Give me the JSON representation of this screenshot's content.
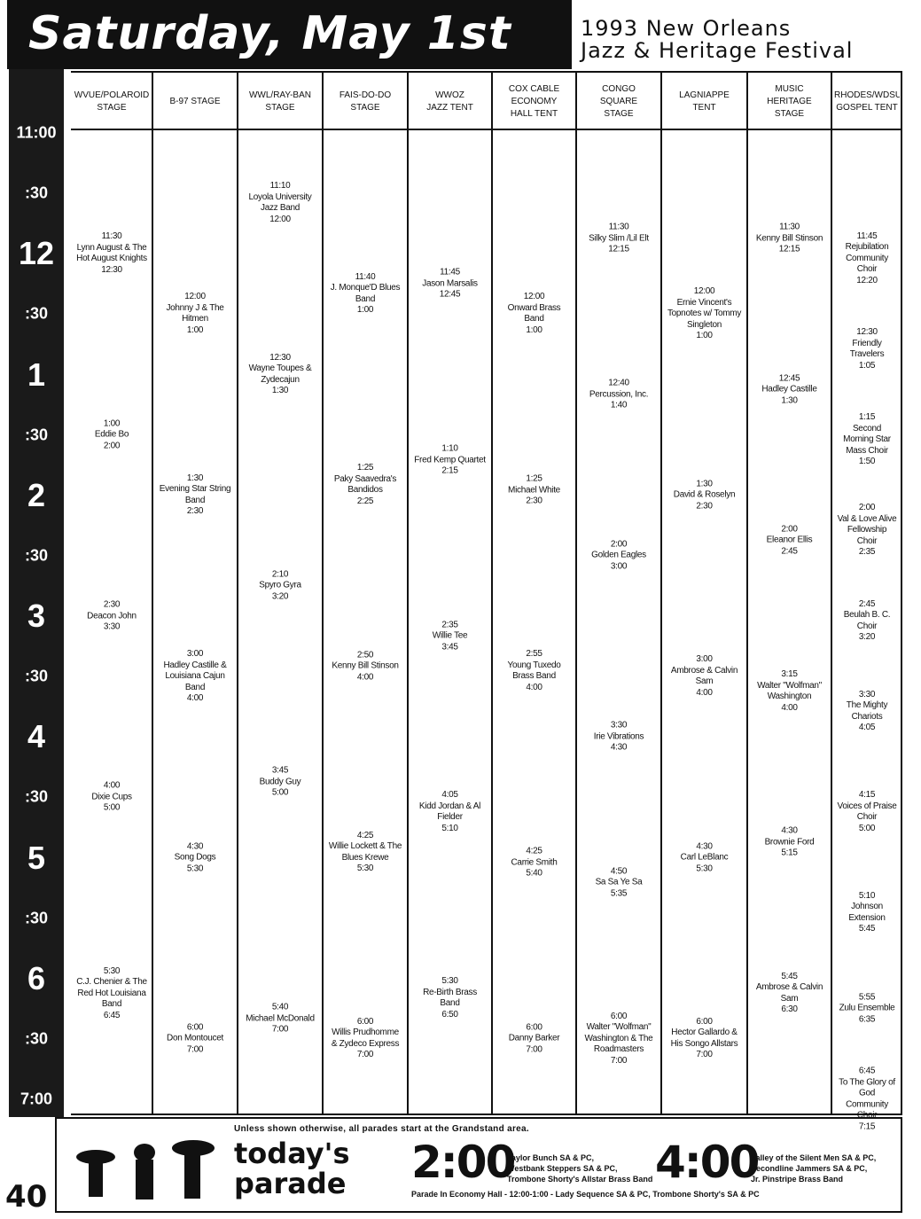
{
  "header": {
    "title": "Saturday, May 1st",
    "subtitle": [
      "1993 New Orleans",
      "Jazz & Heritage Festival"
    ]
  },
  "times": [
    "11:00",
    ":30",
    "12",
    ":30",
    "1",
    ":30",
    "2",
    ":30",
    "3",
    ":30",
    "4",
    ":30",
    "5",
    ":30",
    "6",
    ":30",
    "7:00"
  ],
  "stages": [
    {
      "name": [
        "WVUE/POLAROID",
        "STAGE"
      ],
      "events": [
        {
          "start": "11:30",
          "name": "Lynn August & The Hot August Knights",
          "end": "12:30"
        },
        {
          "start": "1:00",
          "name": "Eddie Bo",
          "end": "2:00"
        },
        {
          "start": "2:30",
          "name": "Deacon John",
          "end": "3:30"
        },
        {
          "start": "4:00",
          "name": "Dixie Cups",
          "end": "5:00"
        },
        {
          "start": "5:30",
          "name": "C.J. Chenier & The Red Hot Louisiana Band",
          "end": "6:45"
        }
      ]
    },
    {
      "name": [
        "B-97 STAGE"
      ],
      "events": [
        {
          "start": "12:00",
          "name": "Johnny J & The Hitmen",
          "end": "1:00"
        },
        {
          "start": "1:30",
          "name": "Evening Star String Band",
          "end": "2:30"
        },
        {
          "start": "3:00",
          "name": "Hadley Castille & Louisiana Cajun Band",
          "end": "4:00"
        },
        {
          "start": "4:30",
          "name": "Song Dogs",
          "end": "5:30"
        },
        {
          "start": "6:00",
          "name": "Don Montoucet",
          "end": "7:00"
        }
      ]
    },
    {
      "name": [
        "WWL/RAY-BAN",
        "STAGE"
      ],
      "events": [
        {
          "start": "11:10",
          "name": "Loyola University Jazz Band",
          "end": "12:00"
        },
        {
          "start": "12:30",
          "name": "Wayne Toupes & Zydecajun",
          "end": "1:30"
        },
        {
          "start": "2:10",
          "name": "Spyro Gyra",
          "end": "3:20"
        },
        {
          "start": "3:45",
          "name": "Buddy Guy",
          "end": "5:00"
        },
        {
          "start": "5:40",
          "name": "Michael McDonald",
          "end": "7:00"
        }
      ]
    },
    {
      "name": [
        "FAIS-DO-DO",
        "STAGE"
      ],
      "events": [
        {
          "start": "11:40",
          "name": "J. Monque'D Blues Band",
          "end": "1:00"
        },
        {
          "start": "1:25",
          "name": "Paky Saavedra's Bandidos",
          "end": "2:25"
        },
        {
          "start": "2:50",
          "name": "Kenny Bill Stinson",
          "end": "4:00"
        },
        {
          "start": "4:25",
          "name": "Willie Lockett & The Blues Krewe",
          "end": "5:30"
        },
        {
          "start": "6:00",
          "name": "Willis Prudhomme & Zydeco Express",
          "end": "7:00"
        }
      ]
    },
    {
      "name": [
        "WWOZ",
        "JAZZ TENT"
      ],
      "events": [
        {
          "start": "11:45",
          "name": "Jason Marsalis",
          "end": "12:45"
        },
        {
          "start": "1:10",
          "name": "Fred Kemp Quartet",
          "end": "2:15"
        },
        {
          "start": "2:35",
          "name": "Willie Tee",
          "end": "3:45"
        },
        {
          "start": "4:05",
          "name": "Kidd Jordan & Al Fielder",
          "end": "5:10"
        },
        {
          "start": "5:30",
          "name": "Re-Birth Brass Band",
          "end": "6:50"
        }
      ]
    },
    {
      "name": [
        "COX CABLE",
        "ECONOMY",
        "HALL TENT"
      ],
      "events": [
        {
          "start": "12:00",
          "name": "Onward Brass Band",
          "end": "1:00"
        },
        {
          "start": "1:25",
          "name": "Michael White",
          "end": "2:30"
        },
        {
          "start": "2:55",
          "name": "Young Tuxedo Brass Band",
          "end": "4:00"
        },
        {
          "start": "4:25",
          "name": "Carrie Smith",
          "end": "5:40"
        },
        {
          "start": "6:00",
          "name": "Danny Barker",
          "end": "7:00"
        }
      ]
    },
    {
      "name": [
        "CONGO",
        "SQUARE",
        "STAGE"
      ],
      "events": [
        {
          "start": "11:30",
          "name": "Silky Slim /Lil Elt",
          "end": "12:15"
        },
        {
          "start": "12:40",
          "name": "Percussion, Inc.",
          "end": "1:40"
        },
        {
          "start": "2:00",
          "name": "Golden Eagles",
          "end": "3:00"
        },
        {
          "start": "3:30",
          "name": "Irie Vibrations",
          "end": "4:30"
        },
        {
          "start": "4:50",
          "name": "Sa Sa Ye Sa",
          "end": "5:35"
        },
        {
          "start": "6:00",
          "name": "Walter \"Wolfman\" Washington & The Roadmasters",
          "end": "7:00"
        }
      ]
    },
    {
      "name": [
        "LAGNIAPPE",
        "TENT"
      ],
      "events": [
        {
          "start": "12:00",
          "name": "Ernie Vincent's Topnotes w/ Tommy Singleton",
          "end": "1:00"
        },
        {
          "start": "1:30",
          "name": "David & Roselyn",
          "end": "2:30"
        },
        {
          "start": "3:00",
          "name": "Ambrose & Calvin Sam",
          "end": "4:00"
        },
        {
          "start": "4:30",
          "name": "Carl LeBlanc",
          "end": "5:30"
        },
        {
          "start": "6:00",
          "name": "Hector Gallardo & His Songo Allstars",
          "end": "7:00"
        }
      ]
    },
    {
      "name": [
        "MUSIC",
        "HERITAGE",
        "STAGE"
      ],
      "events": [
        {
          "start": "11:30",
          "name": "Kenny Bill Stinson",
          "end": "12:15"
        },
        {
          "start": "12:45",
          "name": "Hadley Castille",
          "end": "1:30"
        },
        {
          "start": "2:00",
          "name": "Eleanor Ellis",
          "end": "2:45"
        },
        {
          "start": "3:15",
          "name": "Walter \"Wolfman\" Washington",
          "end": "4:00"
        },
        {
          "start": "4:30",
          "name": "Brownie Ford",
          "end": "5:15"
        },
        {
          "start": "5:45",
          "name": "Ambrose & Calvin Sam",
          "end": "6:30"
        }
      ]
    },
    {
      "name": [
        "RHODES/WDSU",
        "GOSPEL TENT"
      ],
      "events": [
        {
          "start": "11:45",
          "name": "Rejubilation Community Choir",
          "end": "12:20"
        },
        {
          "start": "12:30",
          "name": "Friendly Travelers",
          "end": "1:05"
        },
        {
          "start": "1:15",
          "name": "Second Morning Star Mass Choir",
          "end": "1:50"
        },
        {
          "start": "2:00",
          "name": "Val & Love Alive Fellowship Choir",
          "end": "2:35"
        },
        {
          "start": "2:45",
          "name": "Beulah B. C. Choir",
          "end": "3:20"
        },
        {
          "start": "3:30",
          "name": "The Mighty Chariots",
          "end": "4:05"
        },
        {
          "start": "4:15",
          "name": "Voices of Praise Choir",
          "end": "5:00"
        },
        {
          "start": "5:10",
          "name": "Johnson Extension",
          "end": "5:45"
        },
        {
          "start": "5:55",
          "name": "Zulu Ensemble",
          "end": "6:35"
        },
        {
          "start": "6:45",
          "name": "To The Glory of God Community Choir",
          "end": "7:15"
        }
      ]
    }
  ],
  "footer": {
    "note": "Unless shown otherwise, all parades start at the Grandstand area.",
    "label": [
      "today's",
      "parade"
    ],
    "parades": [
      {
        "time": "2:00",
        "lines": [
          "Taylor Bunch SA & PC,",
          "Westbank Steppers SA & PC,",
          "Trombone Shorty's Allstar Brass Band"
        ]
      },
      {
        "time": "4:00",
        "lines": [
          "Valley of the Silent Men SA & PC,",
          "Secondline Jammers SA & PC,",
          "Jr. Pinstripe Brass Band"
        ]
      }
    ],
    "economy": "Parade In Economy Hall - 12:00-1:00 - Lady Sequence SA & PC, Trombone Shorty's SA & PC",
    "page": "40"
  }
}
